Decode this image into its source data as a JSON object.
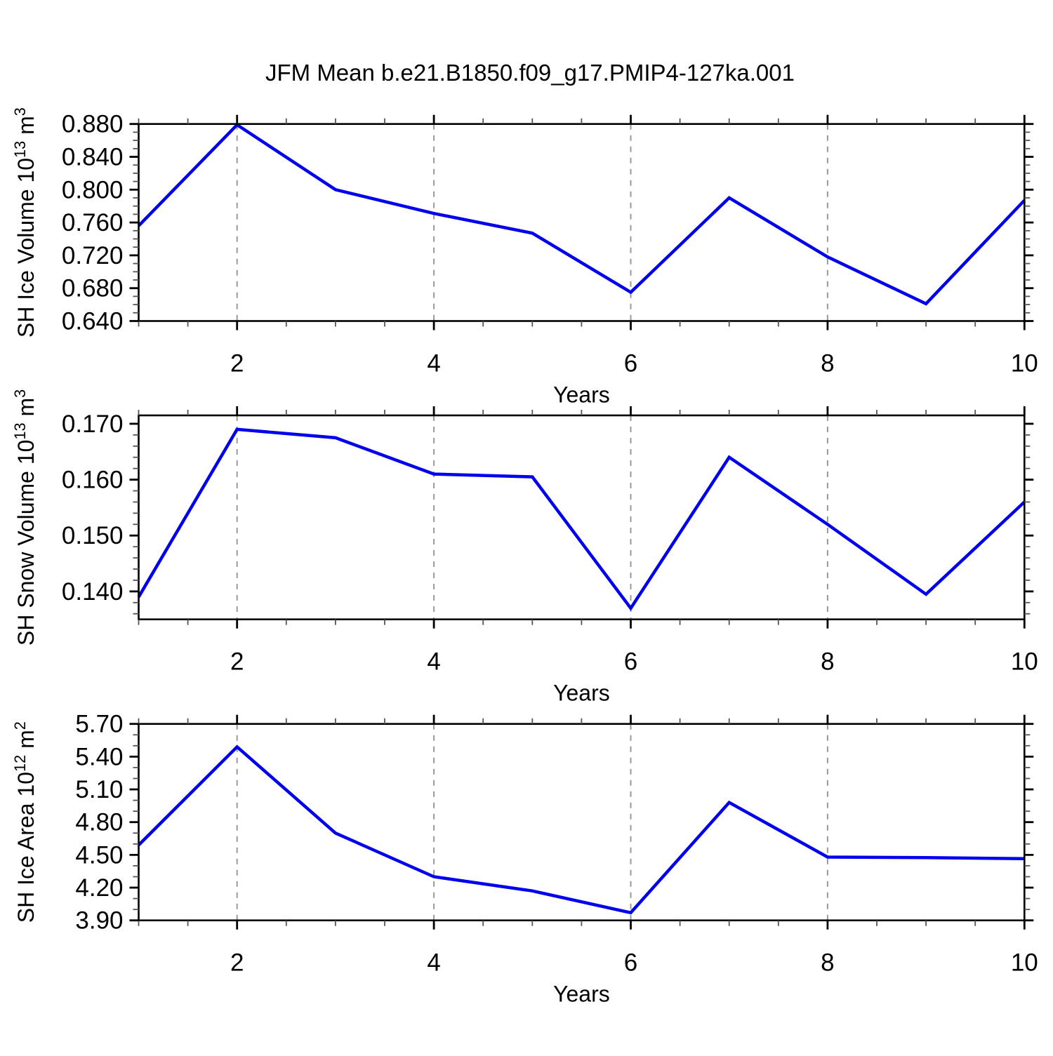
{
  "title": "JFM Mean b.e21.B1850.f09_g17.PMIP4-127ka.001",
  "colors": {
    "line": "#0000ee",
    "gridline": "#999999",
    "axis": "#000000",
    "minor_tick": "#555555",
    "background": "#ffffff"
  },
  "x_axis": {
    "label": "Years",
    "lim": [
      1,
      10
    ],
    "major_ticks": [
      2,
      4,
      6,
      8,
      10
    ],
    "major_tick_labels": [
      "2",
      "4",
      "6",
      "8",
      "10"
    ],
    "minor_step": 0.5,
    "gridline_years": [
      2,
      4,
      6,
      8
    ]
  },
  "chart_data": [
    {
      "type": "line",
      "name": "sh-ice-volume",
      "title": "",
      "ylabel": "SH Ice Volume 10^13 m^3",
      "xlabel": "Years",
      "x": [
        1,
        2,
        3,
        4,
        5,
        6,
        7,
        8,
        9,
        10
      ],
      "values": [
        0.756,
        0.879,
        0.8,
        0.771,
        0.747,
        0.675,
        0.79,
        0.718,
        0.661,
        0.787
      ],
      "ylim": [
        0.64,
        0.88
      ],
      "ytick_major_base": 0.64,
      "ytick_major_step": 0.04,
      "ytick_minor_step": 0.01,
      "ytick_decimals": 3,
      "ytick_labels": [
        "0.640",
        "0.680",
        "0.720",
        "0.760",
        "0.800",
        "0.840",
        "0.880"
      ],
      "grid": "dashed-vertical-at-even-years",
      "legend": "none"
    },
    {
      "type": "line",
      "name": "sh-snow-volume",
      "title": "",
      "ylabel": "SH Snow Volume 10^13 m^3",
      "xlabel": "Years",
      "x": [
        1,
        2,
        3,
        4,
        5,
        6,
        7,
        8,
        9,
        10
      ],
      "values": [
        0.139,
        0.169,
        0.1675,
        0.161,
        0.1605,
        0.137,
        0.164,
        0.152,
        0.1395,
        0.156
      ],
      "ylim": [
        0.135,
        0.1715
      ],
      "ytick_major_base": 0.14,
      "ytick_major_step": 0.01,
      "ytick_minor_step": 0.002,
      "ytick_decimals": 3,
      "ytick_labels": [
        "0.140",
        "0.150",
        "0.160",
        "0.170"
      ],
      "grid": "dashed-vertical-at-even-years",
      "legend": "none"
    },
    {
      "type": "line",
      "name": "sh-ice-area",
      "title": "",
      "ylabel": "SH Ice Area 10^12 m^2",
      "xlabel": "Years",
      "x": [
        1,
        2,
        3,
        4,
        5,
        6,
        7,
        8,
        9,
        10
      ],
      "values": [
        4.59,
        5.49,
        4.7,
        4.3,
        4.17,
        3.97,
        4.98,
        4.48,
        4.475,
        4.465
      ],
      "ylim": [
        3.9,
        5.7
      ],
      "ytick_major_base": 3.9,
      "ytick_major_step": 0.3,
      "ytick_minor_step": 0.1,
      "ytick_decimals": 2,
      "ytick_labels": [
        "3.90",
        "4.20",
        "4.50",
        "4.80",
        "5.10",
        "5.40",
        "5.70"
      ],
      "grid": "dashed-vertical-at-even-years",
      "legend": "none"
    }
  ]
}
